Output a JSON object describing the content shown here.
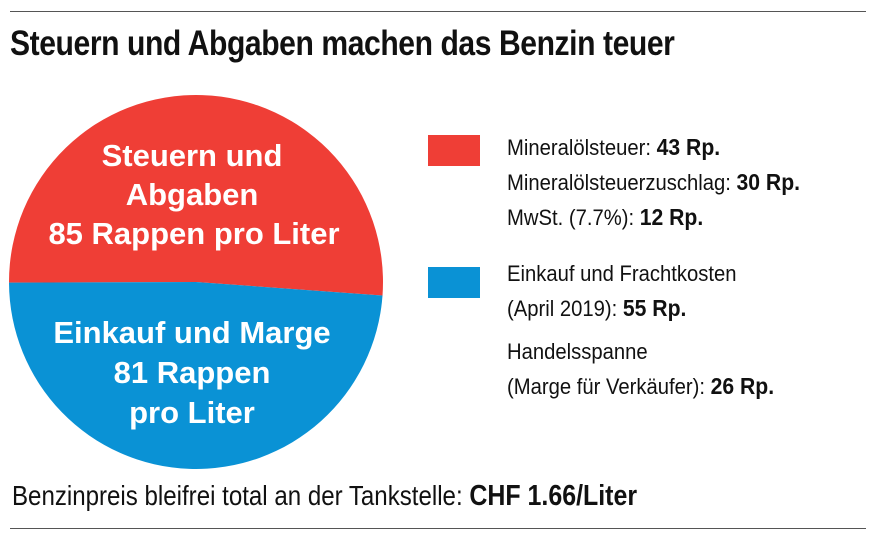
{
  "title": "Steuern und Abgaben machen das Benzin teuer",
  "colors": {
    "taxes": "#ef3e36",
    "purchase": "#0a92d5",
    "text": "#111111"
  },
  "chart_data": {
    "type": "pie",
    "title": "Steuern und Abgaben machen das Benzin teuer",
    "unit": "Rappen pro Liter",
    "slices": [
      {
        "key": "taxes",
        "value": 85,
        "label_lines": [
          "Steuern und",
          "Abgaben",
          "85 Rappen pro Liter"
        ],
        "components": [
          {
            "label": "Mineralölsteuer:",
            "value": "43 Rp."
          },
          {
            "label": "Mineralölsteuerzuschlag:",
            "value": "30 Rp."
          },
          {
            "label": "MwSt. (7.7%):",
            "value": "12 Rp."
          }
        ]
      },
      {
        "key": "purchase",
        "value": 81,
        "label_lines": [
          "Einkauf und Marge",
          "81 Rappen",
          "pro Liter"
        ],
        "components": [
          {
            "label_lines": [
              "Einkauf und Frachtkosten",
              "(April 2019):"
            ],
            "value": "55 Rp."
          },
          {
            "label_lines": [
              "Handelsspanne",
              "(Marge für Verkäufer):"
            ],
            "value": "26 Rp."
          }
        ]
      }
    ]
  },
  "footer": {
    "text": "Benzinpreis bleifrei total an der Tankstelle:",
    "value": "CHF 1.66/Liter"
  }
}
